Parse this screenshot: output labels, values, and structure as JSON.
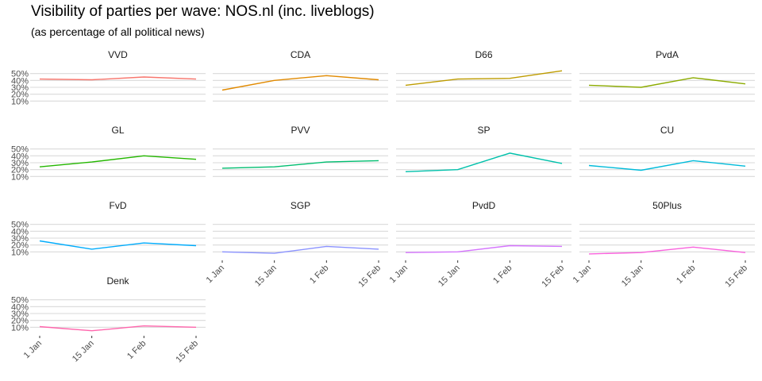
{
  "title": "Visibility of parties per wave: NOS.nl (inc. liveblogs)",
  "subtitle": "(as percentage of all political news)",
  "chart_data": {
    "type": "line",
    "layout": "small multiples, 4 columns, shared axes, free x labels on bottom row of each column",
    "x": [
      "1 Jan",
      "15 Jan",
      "1 Feb",
      "15 Feb"
    ],
    "ylim": [
      0,
      60
    ],
    "yticks": [
      10,
      20,
      30,
      40,
      50
    ],
    "ytick_labels": [
      "10%",
      "20%",
      "30%",
      "40%",
      "50%"
    ],
    "grid": true,
    "panels": [
      {
        "name": "VVD",
        "color": "#F8766D",
        "values": [
          42,
          41,
          45,
          42
        ]
      },
      {
        "name": "CDA",
        "color": "#E18A00",
        "values": [
          26,
          40,
          47,
          41
        ]
      },
      {
        "name": "D66",
        "color": "#BE9C00",
        "values": [
          33,
          42,
          43,
          54
        ]
      },
      {
        "name": "PvdA",
        "color": "#8CAB00",
        "values": [
          33,
          30,
          44,
          35
        ]
      },
      {
        "name": "GL",
        "color": "#24B700",
        "values": [
          24,
          31,
          40,
          35
        ]
      },
      {
        "name": "PVV",
        "color": "#00BE70",
        "values": [
          22,
          24,
          31,
          33
        ]
      },
      {
        "name": "SP",
        "color": "#00C1AB",
        "values": [
          17,
          20,
          44,
          29
        ]
      },
      {
        "name": "CU",
        "color": "#00BBDA",
        "values": [
          26,
          19,
          33,
          25
        ]
      },
      {
        "name": "FvD",
        "color": "#00ACFC",
        "values": [
          26,
          14,
          23,
          19
        ]
      },
      {
        "name": "SGP",
        "color": "#8B93FF",
        "values": [
          10,
          8,
          18,
          14
        ]
      },
      {
        "name": "PvdD",
        "color": "#D575FE",
        "values": [
          9,
          10,
          19,
          18
        ]
      },
      {
        "name": "50Plus",
        "color": "#F962DD",
        "values": [
          7,
          9,
          17,
          9
        ]
      },
      {
        "name": "Denk",
        "color": "#FF65AC",
        "values": [
          11,
          5,
          12,
          10
        ]
      }
    ]
  }
}
